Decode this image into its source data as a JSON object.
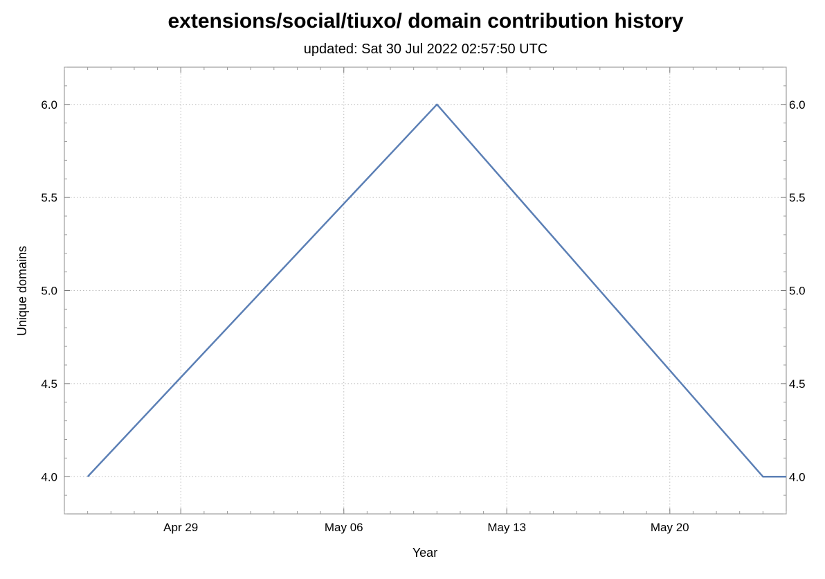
{
  "chart_data": {
    "type": "line",
    "title": "extensions/social/tiuxo/ domain contribution history",
    "subtitle": "updated: Sat 30 Jul 2022 02:57:50 UTC",
    "xlabel": "Year",
    "ylabel": "Unique domains",
    "x_ticks": [
      "Apr 29",
      "May 06",
      "May 13",
      "May 20"
    ],
    "x_tick_dates": [
      "2022-04-29",
      "2022-05-06",
      "2022-05-13",
      "2022-05-20"
    ],
    "y_ticks": [
      "4.0",
      "4.5",
      "5.0",
      "5.5",
      "6.0"
    ],
    "ylim": [
      3.8,
      6.2
    ],
    "xlim": [
      "2022-04-24",
      "2022-05-25"
    ],
    "grid": true,
    "color": "#5b7fb5",
    "series": [
      {
        "x": [
          "2022-04-25",
          "2022-05-10",
          "2022-05-24",
          "2022-05-25"
        ],
        "y": [
          4,
          6,
          4,
          4
        ]
      }
    ]
  }
}
